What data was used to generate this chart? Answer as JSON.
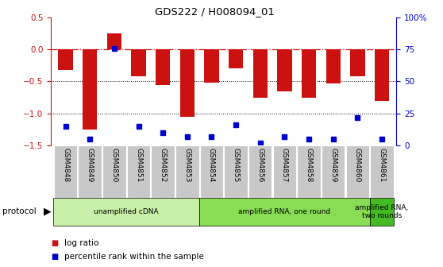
{
  "title": "GDS222 / H008094_01",
  "categories": [
    "GSM4848",
    "GSM4849",
    "GSM4850",
    "GSM4851",
    "GSM4852",
    "GSM4853",
    "GSM4854",
    "GSM4855",
    "GSM4856",
    "GSM4857",
    "GSM4858",
    "GSM4859",
    "GSM4860",
    "GSM4861"
  ],
  "log_ratio": [
    -0.32,
    -1.25,
    0.25,
    -0.42,
    -0.55,
    -1.05,
    -0.52,
    -0.3,
    -0.75,
    -0.65,
    -0.75,
    -0.53,
    -0.42,
    -0.8
  ],
  "percentile_rank": [
    15,
    5,
    76,
    15,
    10,
    7,
    7,
    16,
    2,
    7,
    5,
    5,
    22,
    5
  ],
  "ylim_left": [
    -1.5,
    0.5
  ],
  "ylim_right": [
    0,
    100
  ],
  "bar_color": "#cc1111",
  "dot_color": "#0000cc",
  "dashed_color": "#cc1111",
  "dotted_color": "#000000",
  "protocol_groups": [
    {
      "label": "unamplified cDNA",
      "start": 0,
      "end": 6,
      "color": "#c8f0a8"
    },
    {
      "label": "amplified RNA, one round",
      "start": 6,
      "end": 13,
      "color": "#88dd55"
    },
    {
      "label": "amplified RNA,\ntwo rounds",
      "start": 13,
      "end": 14,
      "color": "#44bb22"
    }
  ],
  "legend_items": [
    {
      "label": "log ratio",
      "color": "#cc1111"
    },
    {
      "label": "percentile rank within the sample",
      "color": "#0000cc"
    }
  ],
  "background_color": "#ffffff",
  "tick_bg_color": "#c8c8c8",
  "fig_width": 5.58,
  "fig_height": 3.36,
  "dpi": 100
}
